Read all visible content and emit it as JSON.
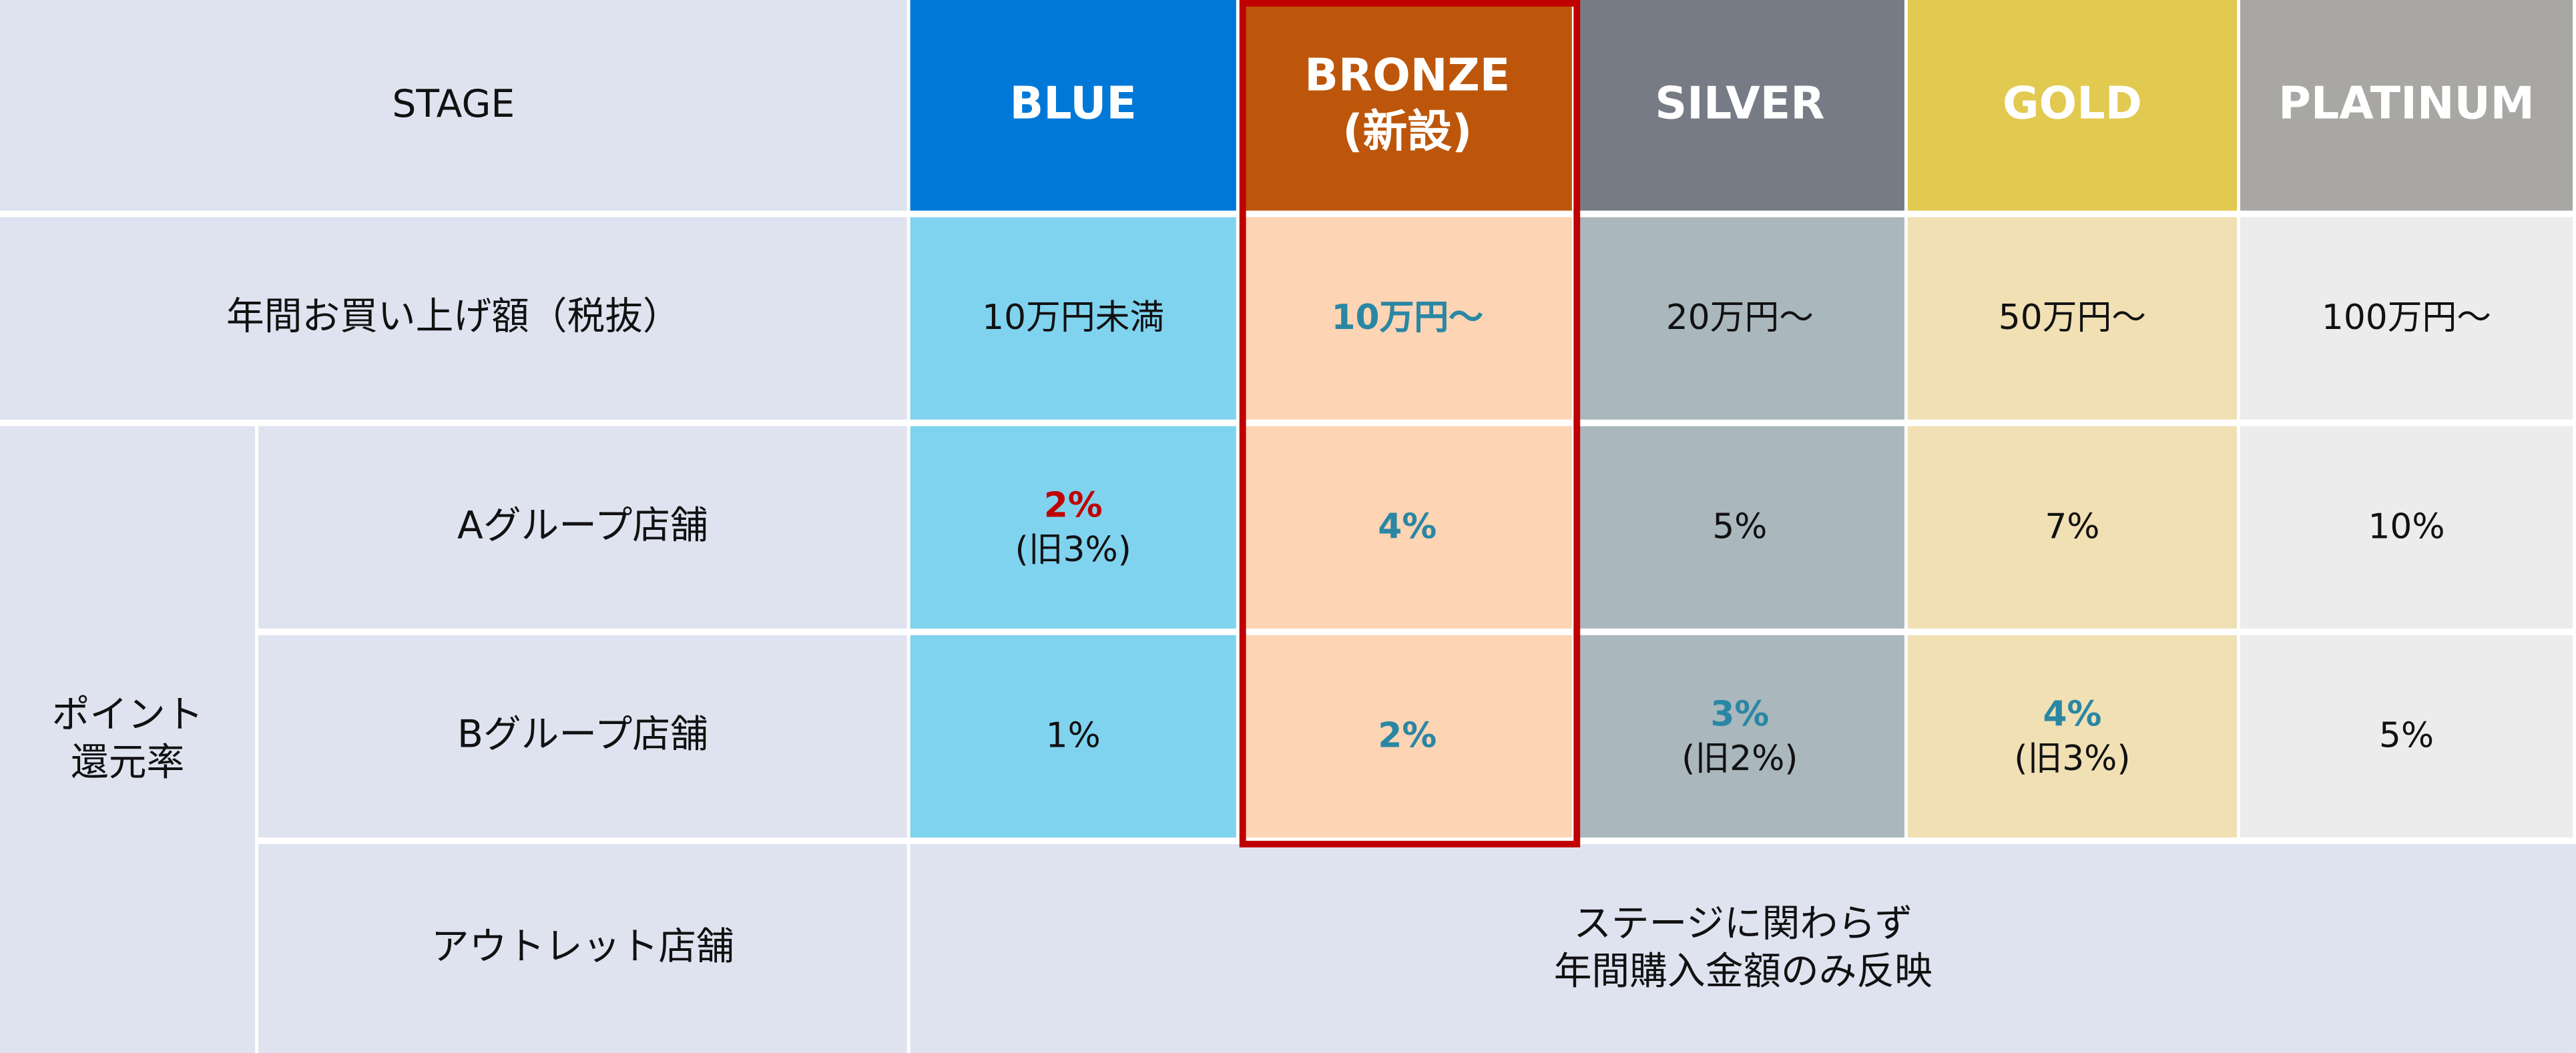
{
  "header": {
    "label": "STAGE",
    "stages": [
      {
        "name": "BLUE"
      },
      {
        "name": "BRONZE",
        "note": "(新設)"
      },
      {
        "name": "SILVER"
      },
      {
        "name": "GOLD"
      },
      {
        "name": "PLATINUM"
      }
    ]
  },
  "annual": {
    "label": "年間お買い上げ額（税抜）",
    "cells": [
      "10万円未満",
      "10万円〜",
      "20万円〜",
      "50万円〜",
      "100万円〜"
    ]
  },
  "points": {
    "label_lines": [
      "ポイント",
      "還元率"
    ],
    "rows": [
      {
        "label": "Aグループ店舗",
        "cells": [
          {
            "text": "2%",
            "old": "(旧3%)"
          },
          {
            "text": "4%"
          },
          {
            "text": "5%"
          },
          {
            "text": "7%"
          },
          {
            "text": "10%"
          }
        ]
      },
      {
        "label": "Bグループ店舗",
        "cells": [
          {
            "text": "1%"
          },
          {
            "text": "2%"
          },
          {
            "text": "3%",
            "old": "(旧2%)"
          },
          {
            "text": "4%",
            "old": "(旧3%)"
          },
          {
            "text": "5%"
          }
        ]
      }
    ],
    "outlet": {
      "label": "アウトレット店舗",
      "lines": [
        "ステージに関わらず",
        "年間購入金額のみ反映"
      ]
    }
  }
}
